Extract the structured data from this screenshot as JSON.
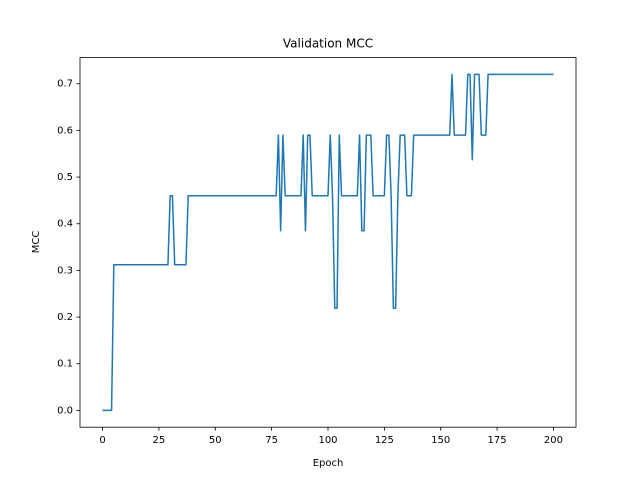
{
  "chart_data": {
    "type": "line",
    "title": "Validation MCC",
    "xlabel": "Epoch",
    "ylabel": "MCC",
    "x": [
      0,
      1,
      2,
      3,
      4,
      5,
      6,
      7,
      8,
      9,
      10,
      11,
      12,
      13,
      14,
      15,
      16,
      17,
      18,
      19,
      20,
      21,
      22,
      23,
      24,
      25,
      26,
      27,
      28,
      29,
      30,
      31,
      32,
      33,
      34,
      35,
      36,
      37,
      38,
      39,
      40,
      41,
      42,
      43,
      44,
      45,
      46,
      47,
      48,
      49,
      50,
      51,
      52,
      53,
      54,
      55,
      56,
      57,
      58,
      59,
      60,
      61,
      62,
      63,
      64,
      65,
      66,
      67,
      68,
      69,
      70,
      71,
      72,
      73,
      74,
      75,
      76,
      77,
      78,
      79,
      80,
      81,
      82,
      83,
      84,
      85,
      86,
      87,
      88,
      89,
      90,
      91,
      92,
      93,
      94,
      95,
      96,
      97,
      98,
      99,
      100,
      101,
      102,
      103,
      104,
      105,
      106,
      107,
      108,
      109,
      110,
      111,
      112,
      113,
      114,
      115,
      116,
      117,
      118,
      119,
      120,
      121,
      122,
      123,
      124,
      125,
      126,
      127,
      128,
      129,
      130,
      131,
      132,
      133,
      134,
      135,
      136,
      137,
      138,
      139,
      140,
      141,
      142,
      143,
      144,
      145,
      146,
      147,
      148,
      149,
      150,
      151,
      152,
      153,
      154,
      155,
      156,
      157,
      158,
      159,
      160,
      161,
      162,
      163,
      164,
      165,
      166,
      167,
      168,
      169,
      170,
      171,
      172,
      173,
      174,
      175,
      176,
      177,
      178,
      179,
      180,
      181,
      182,
      183,
      184,
      185,
      186,
      187,
      188,
      189,
      190,
      191,
      192,
      193,
      194,
      195,
      196,
      197,
      198,
      199,
      200
    ],
    "series": [
      {
        "color": "#1f77b4",
        "values": [
          0,
          0,
          0,
          0,
          0,
          0.312,
          0.312,
          0.312,
          0.312,
          0.312,
          0.312,
          0.312,
          0.312,
          0.312,
          0.312,
          0.312,
          0.312,
          0.312,
          0.312,
          0.312,
          0.312,
          0.312,
          0.312,
          0.312,
          0.312,
          0.312,
          0.312,
          0.312,
          0.312,
          0.312,
          0.46,
          0.46,
          0.312,
          0.312,
          0.312,
          0.312,
          0.312,
          0.312,
          0.46,
          0.46,
          0.46,
          0.46,
          0.46,
          0.46,
          0.46,
          0.46,
          0.46,
          0.46,
          0.46,
          0.46,
          0.46,
          0.46,
          0.46,
          0.46,
          0.46,
          0.46,
          0.46,
          0.46,
          0.46,
          0.46,
          0.46,
          0.46,
          0.46,
          0.46,
          0.46,
          0.46,
          0.46,
          0.46,
          0.46,
          0.46,
          0.46,
          0.46,
          0.46,
          0.46,
          0.46,
          0.46,
          0.46,
          0.46,
          0.59,
          0.385,
          0.59,
          0.46,
          0.46,
          0.46,
          0.46,
          0.46,
          0.46,
          0.46,
          0.46,
          0.59,
          0.385,
          0.59,
          0.59,
          0.46,
          0.46,
          0.46,
          0.46,
          0.46,
          0.46,
          0.46,
          0.46,
          0.59,
          0.46,
          0.219,
          0.219,
          0.59,
          0.46,
          0.46,
          0.46,
          0.46,
          0.46,
          0.46,
          0.46,
          0.46,
          0.59,
          0.385,
          0.385,
          0.59,
          0.59,
          0.59,
          0.46,
          0.46,
          0.46,
          0.46,
          0.46,
          0.46,
          0.59,
          0.59,
          0.46,
          0.219,
          0.219,
          0.46,
          0.59,
          0.59,
          0.59,
          0.46,
          0.46,
          0.46,
          0.59,
          0.59,
          0.59,
          0.59,
          0.59,
          0.59,
          0.59,
          0.59,
          0.59,
          0.59,
          0.59,
          0.59,
          0.59,
          0.59,
          0.59,
          0.59,
          0.59,
          0.72,
          0.59,
          0.59,
          0.59,
          0.59,
          0.59,
          0.59,
          0.72,
          0.72,
          0.537,
          0.72,
          0.72,
          0.72,
          0.59,
          0.59,
          0.59,
          0.72,
          0.72,
          0.72,
          0.72,
          0.72,
          0.72,
          0.72,
          0.72,
          0.72,
          0.72,
          0.72,
          0.72,
          0.72,
          0.72,
          0.72,
          0.72,
          0.72,
          0.72,
          0.72,
          0.72,
          0.72,
          0.72,
          0.72,
          0.72,
          0.72,
          0.72,
          0.72,
          0.72,
          0.72,
          0.72
        ]
      }
    ],
    "xlim": [
      -10,
      210
    ],
    "xticks": [
      0,
      25,
      50,
      75,
      100,
      125,
      150,
      175,
      200
    ],
    "ylim": [
      -0.036,
      0.756
    ],
    "yticks": [
      {
        "value": 0,
        "label": "0.0"
      },
      0.1,
      0.2,
      0.3,
      0.4,
      0.5,
      0.6,
      0.7
    ],
    "grid": false
  }
}
